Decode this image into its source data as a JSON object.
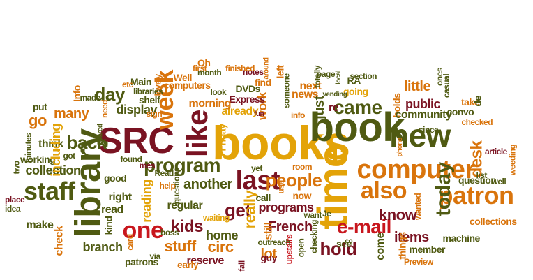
{
  "palette": {
    "dark_olive": "#4f5a12",
    "maroon": "#7a1322",
    "orange": "#d9740c",
    "gold": "#e3a308",
    "red": "#c8161d"
  },
  "words": [
    {
      "text": "books",
      "color": "#e3a308"
    },
    {
      "text": "book",
      "color": "#4f5a12"
    },
    {
      "text": "library",
      "color": "#4f5a12"
    },
    {
      "text": "time",
      "color": "#e3a308"
    },
    {
      "text": "SRC",
      "color": "#7a1322"
    },
    {
      "text": "like",
      "color": "#7a1322"
    },
    {
      "text": "one",
      "color": "#c8161d"
    },
    {
      "text": "new",
      "color": "#4f5a12"
    },
    {
      "text": "week",
      "color": "#d9740c"
    },
    {
      "text": "staff",
      "color": "#4f5a12"
    },
    {
      "text": "computer",
      "color": "#d9740c"
    },
    {
      "text": "last",
      "color": "#7a1322"
    },
    {
      "text": "patron",
      "color": "#d9740c"
    },
    {
      "text": "also",
      "color": "#d9740c"
    },
    {
      "text": "today",
      "color": "#4f5a12"
    },
    {
      "text": "people",
      "color": "#d9740c"
    },
    {
      "text": "e-mail",
      "color": "#c8161d"
    },
    {
      "text": "came",
      "color": "#4f5a12"
    },
    {
      "text": "day",
      "color": "#4f5a12"
    },
    {
      "text": "back",
      "color": "#4f5a12"
    },
    {
      "text": "program",
      "color": "#4f5a12"
    },
    {
      "text": "desk",
      "color": "#d9740c"
    },
    {
      "text": "kids",
      "color": "#7a1322"
    },
    {
      "text": "get",
      "color": "#7a1322"
    },
    {
      "text": "stuff",
      "color": "#d9740c"
    },
    {
      "text": "know",
      "color": "#7a1322"
    },
    {
      "text": "hold",
      "color": "#7a1322"
    },
    {
      "text": "really",
      "color": "#e3a308"
    },
    {
      "text": "another",
      "color": "#4f5a12"
    },
    {
      "text": "reading",
      "color": "#e3a308"
    },
    {
      "text": "many",
      "color": "#d9740c"
    },
    {
      "text": "go",
      "color": "#d9740c"
    },
    {
      "text": "display",
      "color": "#4f5a12"
    },
    {
      "text": "collection",
      "color": "#4f5a12"
    },
    {
      "text": "branch",
      "color": "#4f5a12"
    },
    {
      "text": "check",
      "color": "#d9740c"
    },
    {
      "text": "circ",
      "color": "#d9740c"
    },
    {
      "text": "programs",
      "color": "#7a1322"
    },
    {
      "text": "French",
      "color": "#7a1322"
    },
    {
      "text": "items",
      "color": "#7a1322"
    },
    {
      "text": "home",
      "color": "#4f5a12"
    },
    {
      "text": "lot",
      "color": "#d9740c"
    },
    {
      "text": "still",
      "color": "#d9740c"
    },
    {
      "text": "regular",
      "color": "#4f5a12"
    },
    {
      "text": "reserve",
      "color": "#7a1322"
    },
    {
      "text": "public",
      "color": "#7a1322"
    },
    {
      "text": "holds",
      "color": "#d9740c"
    },
    {
      "text": "little",
      "color": "#d9740c"
    },
    {
      "text": "work",
      "color": "#d9740c"
    },
    {
      "text": "already",
      "color": "#e3a308"
    },
    {
      "text": "news",
      "color": "#d9740c"
    },
    {
      "text": "next",
      "color": "#d9740c"
    },
    {
      "text": "going",
      "color": "#e3a308"
    },
    {
      "text": "just",
      "color": "#4f5a12"
    },
    {
      "text": "re",
      "color": "#7a1322"
    },
    {
      "text": "put",
      "color": "#4f5a12"
    },
    {
      "text": "think",
      "color": "#4f5a12"
    },
    {
      "text": "working",
      "color": "#4f5a12"
    },
    {
      "text": "including",
      "color": "#e3a308"
    },
    {
      "text": "read",
      "color": "#4f5a12"
    },
    {
      "text": "right",
      "color": "#4f5a12"
    },
    {
      "text": "good",
      "color": "#4f5a12"
    },
    {
      "text": "make",
      "color": "#4f5a12"
    },
    {
      "text": "kind",
      "color": "#4f5a12"
    },
    {
      "text": "card",
      "color": "#d9740c"
    },
    {
      "text": "patrons",
      "color": "#4f5a12"
    },
    {
      "text": "questions",
      "color": "#4f5a12"
    },
    {
      "text": "boss",
      "color": "#4f5a12"
    },
    {
      "text": "help",
      "color": "#d9740c"
    },
    {
      "text": "call",
      "color": "#4f5a12"
    },
    {
      "text": "use",
      "color": "#d9740c"
    },
    {
      "text": "now",
      "color": "#d9740c"
    },
    {
      "text": "want",
      "color": "#4f5a12"
    },
    {
      "text": "see",
      "color": "#4f5a12"
    },
    {
      "text": "guy",
      "color": "#7a1322"
    },
    {
      "text": "upstairs",
      "color": "#c8161d"
    },
    {
      "text": "come",
      "color": "#4f5a12"
    },
    {
      "text": "things",
      "color": "#d9740c"
    },
    {
      "text": "member",
      "color": "#4f5a12"
    },
    {
      "text": "Preview",
      "color": "#d9740c"
    },
    {
      "text": "machine",
      "color": "#4f5a12"
    },
    {
      "text": "collections",
      "color": "#d9740c"
    },
    {
      "text": "question",
      "color": "#4f5a12"
    },
    {
      "text": "list",
      "color": "#4f5a12"
    },
    {
      "text": "article",
      "color": "#7a1322"
    },
    {
      "text": "weeding",
      "color": "#d9740c"
    },
    {
      "text": "well",
      "color": "#4f5a12"
    },
    {
      "text": "community",
      "color": "#4f5a12"
    },
    {
      "text": "convo",
      "color": "#4f5a12"
    },
    {
      "text": "checked",
      "color": "#d9740c"
    },
    {
      "text": "take",
      "color": "#d9740c"
    },
    {
      "text": "de",
      "color": "#4f5a12"
    },
    {
      "text": "since",
      "color": "#4f5a12"
    },
    {
      "text": "phone",
      "color": "#d9740c"
    },
    {
      "text": "casual",
      "color": "#4f5a12"
    },
    {
      "text": "ones",
      "color": "#4f5a12"
    },
    {
      "text": "section",
      "color": "#4f5a12"
    },
    {
      "text": "RA",
      "color": "#4f5a12"
    },
    {
      "text": "local",
      "color": "#4f5a12"
    },
    {
      "text": "page",
      "color": "#4f5a12"
    },
    {
      "text": "totally",
      "color": "#4f5a12"
    },
    {
      "text": "vending",
      "color": "#4f5a12"
    },
    {
      "text": "left",
      "color": "#d9740c"
    },
    {
      "text": "notes",
      "color": "#7a1322"
    },
    {
      "text": "around",
      "color": "#d9740c"
    },
    {
      "text": "finished",
      "color": "#d9740c"
    },
    {
      "text": "DVDs",
      "color": "#4f5a12"
    },
    {
      "text": "find",
      "color": "#d9740c"
    },
    {
      "text": "Express",
      "color": "#7a1322"
    },
    {
      "text": "someone",
      "color": "#4f5a12"
    },
    {
      "text": "info",
      "color": "#d9740c"
    },
    {
      "text": "fun",
      "color": "#7a1322"
    },
    {
      "text": "month",
      "color": "#4f5a12"
    },
    {
      "text": "first",
      "color": "#d9740c"
    },
    {
      "text": "Oh",
      "color": "#d9740c"
    },
    {
      "text": "Well",
      "color": "#d9740c"
    },
    {
      "text": "computers",
      "color": "#d9740c"
    },
    {
      "text": "look",
      "color": "#4f5a12"
    },
    {
      "text": "morning",
      "color": "#d9740c"
    },
    {
      "text": "Friday",
      "color": "#e3a308"
    },
    {
      "text": "Main",
      "color": "#4f5a12"
    },
    {
      "text": "lovely",
      "color": "#d9740c"
    },
    {
      "text": "etc",
      "color": "#d9740c"
    },
    {
      "text": "libraries",
      "color": "#4f5a12"
    },
    {
      "text": "shelf",
      "color": "#4f5a12"
    },
    {
      "text": "sign",
      "color": "#d9740c"
    },
    {
      "text": "made",
      "color": "#4f5a12"
    },
    {
      "text": "need",
      "color": "#d9740c"
    },
    {
      "text": "Info",
      "color": "#d9740c"
    },
    {
      "text": "Shared",
      "color": "#4f5a12"
    },
    {
      "text": "got",
      "color": "#4f5a12"
    },
    {
      "text": "found",
      "color": "#4f5a12"
    },
    {
      "text": "mes",
      "color": "#7a1322"
    },
    {
      "text": "Read",
      "color": "#4f5a12"
    },
    {
      "text": "minutes",
      "color": "#4f5a12"
    },
    {
      "text": "two",
      "color": "#4f5a12"
    },
    {
      "text": "place",
      "color": "#7a1322"
    },
    {
      "text": "idea",
      "color": "#4f5a12"
    },
    {
      "text": "waiting",
      "color": "#e3a308"
    },
    {
      "text": "via",
      "color": "#4f5a12"
    },
    {
      "text": "early",
      "color": "#d9740c"
    },
    {
      "text": "fall",
      "color": "#7a1322"
    },
    {
      "text": "yet",
      "color": "#4f5a12"
    },
    {
      "text": "room",
      "color": "#d9740c"
    },
    {
      "text": "Je",
      "color": "#4f5a12"
    },
    {
      "text": "checking",
      "color": "#4f5a12"
    },
    {
      "text": "outreach",
      "color": "#4f5a12"
    },
    {
      "text": "open",
      "color": "#4f5a12"
    },
    {
      "text": "co",
      "color": "#4f5a12"
    },
    {
      "text": "wanted",
      "color": "#d9740c"
    }
  ]
}
